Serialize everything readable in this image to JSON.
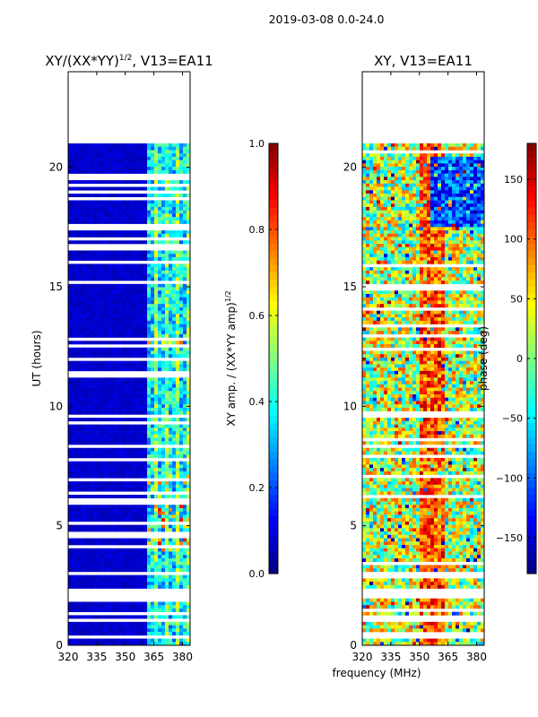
{
  "chart_data": {
    "suptitle": "2019-03-08 0.0-24.0",
    "xlabel_shared": "frequency (MHz)",
    "panels": [
      {
        "type": "heatmap",
        "title_main": "XY/(XX*YY)",
        "title_sup": "1/2",
        "title_rest": ", V13=EA11",
        "ylabel": "UT (hours)",
        "xlim": [
          320,
          384
        ],
        "ylim": [
          0,
          24
        ],
        "xticks": [
          "320",
          "335",
          "350",
          "365",
          "380"
        ],
        "xtick_values": [
          320,
          335,
          350,
          365,
          380
        ],
        "yticks": [
          "0",
          "5",
          "10",
          "15",
          "20"
        ],
        "ytick_values": [
          0,
          5,
          10,
          15,
          20
        ],
        "data_end_hours": 21.0,
        "colorbar": {
          "label_main": "XY amp. / (XX*YY amp)",
          "label_sup": "1/2",
          "min": 0.0,
          "max": 1.0,
          "ticks": [
            "0.0",
            "0.2",
            "0.4",
            "0.6",
            "0.8",
            "1.0"
          ],
          "tick_values": [
            0.0,
            0.2,
            0.4,
            0.6,
            0.8,
            1.0
          ]
        }
      },
      {
        "type": "heatmap",
        "title_main": "XY, V13=EA11",
        "ylabel": "",
        "xlim": [
          320,
          384
        ],
        "ylim": [
          0,
          24
        ],
        "xticks": [
          "320",
          "335",
          "350",
          "365",
          "380"
        ],
        "xtick_values": [
          320,
          335,
          350,
          365,
          380
        ],
        "yticks": [
          "0",
          "5",
          "10",
          "15",
          "20"
        ],
        "ytick_values": [
          0,
          5,
          10,
          15,
          20
        ],
        "data_end_hours": 21.0,
        "colorbar": {
          "label_main": "phase (deg)",
          "min": -180,
          "max": 180,
          "ticks": [
            "−150",
            "−100",
            "−50",
            "0",
            "50",
            "100",
            "150"
          ],
          "tick_values": [
            -150,
            -100,
            -50,
            0,
            50,
            100,
            150
          ]
        }
      }
    ]
  }
}
